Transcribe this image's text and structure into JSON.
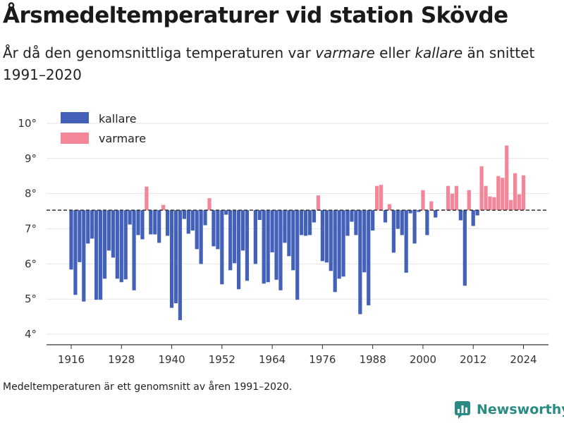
{
  "title": "Årsmedeltemperaturer vid station Skövde",
  "subtitle": {
    "p1": "År då den genomsnittliga temperaturen var ",
    "warm_word": "varmare",
    "p2": " eller ",
    "cold_word": "kallare",
    "p3": " än snittet 1991–2020"
  },
  "footnote": "Medeltemperaturen är ett genomsnitt av åren 1991–2020.",
  "brand": {
    "name": "Newsworthy",
    "icon": "newsworthy-logo-icon"
  },
  "colors": {
    "cold": "#4361b8",
    "warm": "#f4869a",
    "baseline": "#333333",
    "grid": "#e6e6e6"
  },
  "chart_data": {
    "type": "bar",
    "baseline": 7.53,
    "ylim": [
      3.7,
      10.4
    ],
    "yticks": [
      4,
      5,
      6,
      7,
      8,
      9,
      10
    ],
    "ytick_labels": [
      "4°",
      "5°",
      "6°",
      "7°",
      "8°",
      "9°",
      "10°"
    ],
    "xticks": [
      1916,
      1928,
      1940,
      1952,
      1964,
      1976,
      1988,
      2000,
      2012,
      2024
    ],
    "xtick_labels": [
      "1916",
      "1928",
      "1940",
      "1952",
      "1964",
      "1976",
      "1988",
      "2000",
      "2012",
      "2024"
    ],
    "legend": [
      {
        "key": "cold",
        "label": "kallare"
      },
      {
        "key": "warm",
        "label": "varmare"
      }
    ],
    "legend_position": "top-left",
    "series": [
      {
        "years": [
          1916,
          1917,
          1918,
          1919,
          1920,
          1921,
          1922,
          1923,
          1924,
          1925,
          1926,
          1927,
          1928,
          1929,
          1930,
          1931,
          1932,
          1933,
          1934,
          1935,
          1936,
          1937,
          1938,
          1939,
          1940,
          1941,
          1942,
          1943,
          1944,
          1945,
          1946,
          1947,
          1948,
          1949,
          1950,
          1951,
          1952,
          1953,
          1954,
          1955,
          1956,
          1957,
          1958,
          1959,
          1960,
          1961,
          1962,
          1963,
          1964,
          1965,
          1966,
          1967,
          1968,
          1969,
          1970,
          1971,
          1972,
          1973,
          1974,
          1975,
          1976,
          1977,
          1978,
          1979,
          1980,
          1981,
          1982,
          1983,
          1984,
          1985,
          1986,
          1987,
          1988,
          1989,
          1990,
          1991,
          1992,
          1993,
          1994,
          1995,
          1996,
          1997,
          1998,
          1999,
          2000,
          2001,
          2002,
          2003,
          2004,
          2005,
          2006,
          2007,
          2008,
          2009,
          2010,
          2011,
          2012,
          2013,
          2014,
          2015,
          2016,
          2017,
          2018,
          2019,
          2020,
          2021,
          2022,
          2023,
          2024
        ],
        "values": [
          5.84,
          5.12,
          6.05,
          4.93,
          6.58,
          6.72,
          4.98,
          4.98,
          5.58,
          6.38,
          6.18,
          5.58,
          5.48,
          5.56,
          7.12,
          5.25,
          6.82,
          6.7,
          8.2,
          6.84,
          6.84,
          6.6,
          7.68,
          6.8,
          4.75,
          4.88,
          4.4,
          7.28,
          6.86,
          6.95,
          6.42,
          6.0,
          7.1,
          7.87,
          6.5,
          6.42,
          5.42,
          7.4,
          5.82,
          6.02,
          5.28,
          6.38,
          5.52,
          null,
          6.0,
          7.25,
          5.44,
          5.48,
          6.33,
          5.55,
          5.25,
          6.6,
          6.22,
          5.82,
          4.98,
          6.82,
          6.8,
          6.82,
          7.18,
          7.95,
          6.08,
          6.04,
          5.8,
          5.2,
          5.58,
          5.64,
          6.8,
          7.2,
          6.82,
          4.57,
          5.76,
          4.82,
          6.95,
          8.22,
          8.25,
          7.18,
          7.7,
          6.32,
          7.0,
          6.82,
          5.75,
          7.44,
          6.58,
          7.48,
          8.1,
          6.82,
          7.78,
          7.32,
          null,
          7.55,
          8.22,
          8.0,
          8.22,
          7.24,
          5.38,
          8.1,
          7.08,
          7.38,
          8.78,
          8.22,
          7.92,
          7.9,
          8.5,
          8.45,
          9.37,
          7.82,
          8.58,
          7.98,
          8.52
        ]
      }
    ]
  }
}
